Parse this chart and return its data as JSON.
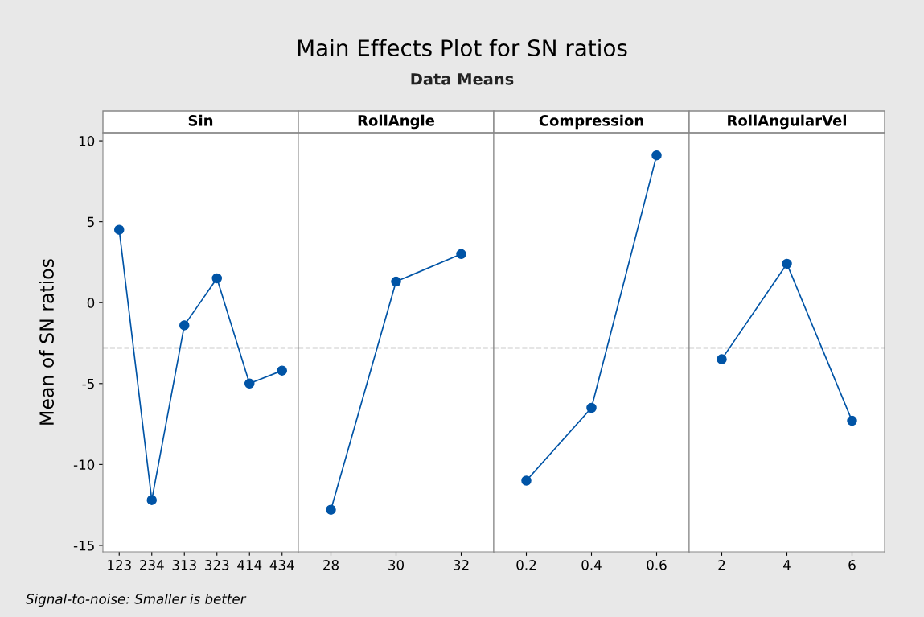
{
  "chart_data": [
    {
      "type": "other",
      "title": "Main Effects Plot for SN ratios",
      "subtitle": "Data Means",
      "annotations": [
        "Signal-to-noise: Smaller is better"
      ]
    },
    {
      "type": "line",
      "title": "Sin",
      "ylabel": "Mean of SN ratios",
      "categories": [
        "123",
        "234",
        "313",
        "323",
        "414",
        "434"
      ],
      "series": [
        {
          "color": "#0054a6",
          "values": [
            4.5,
            -12.2,
            -1.4,
            1.5,
            -5.0,
            -4.2
          ]
        }
      ],
      "ylim": [
        -15.4,
        10.5
      ],
      "yticks": [
        -15,
        -10,
        -5,
        0,
        5,
        10
      ],
      "marker": "circle",
      "ref_lines": [
        {
          "axis": "y",
          "value": -2.8,
          "color": "#999999",
          "line_style": "dashed"
        }
      ]
    },
    {
      "type": "line",
      "title": "RollAngle",
      "categories": [
        "28",
        "30",
        "32"
      ],
      "series": [
        {
          "color": "#0054a6",
          "values": [
            -12.8,
            1.3,
            3.0
          ]
        }
      ],
      "ylim": [
        -15.4,
        10.5
      ],
      "yticks": [
        -15,
        -10,
        -5,
        0,
        5,
        10
      ],
      "tick_labels": "x",
      "marker": "circle",
      "ref_lines": [
        {
          "axis": "y",
          "value": -2.8,
          "color": "#999999",
          "line_style": "dashed"
        }
      ]
    },
    {
      "type": "line",
      "title": "Compression",
      "categories": [
        "0.2",
        "0.4",
        "0.6"
      ],
      "series": [
        {
          "color": "#0054a6",
          "values": [
            -11.0,
            -6.5,
            9.1
          ]
        }
      ],
      "ylim": [
        -15.4,
        10.5
      ],
      "yticks": [
        -15,
        -10,
        -5,
        0,
        5,
        10
      ],
      "tick_labels": "x",
      "marker": "circle",
      "ref_lines": [
        {
          "axis": "y",
          "value": -2.8,
          "color": "#999999",
          "line_style": "dashed"
        }
      ]
    },
    {
      "type": "line",
      "title": "RollAngularVel",
      "categories": [
        "2",
        "4",
        "6"
      ],
      "series": [
        {
          "color": "#0054a6",
          "values": [
            -3.5,
            2.4,
            -7.3
          ]
        }
      ],
      "ylim": [
        -15.4,
        10.5
      ],
      "yticks": [
        -15,
        -10,
        -5,
        0,
        5,
        10
      ],
      "tick_labels": "x",
      "marker": "circle",
      "ref_lines": [
        {
          "axis": "y",
          "value": -2.8,
          "color": "#999999",
          "line_style": "dashed"
        }
      ]
    }
  ]
}
